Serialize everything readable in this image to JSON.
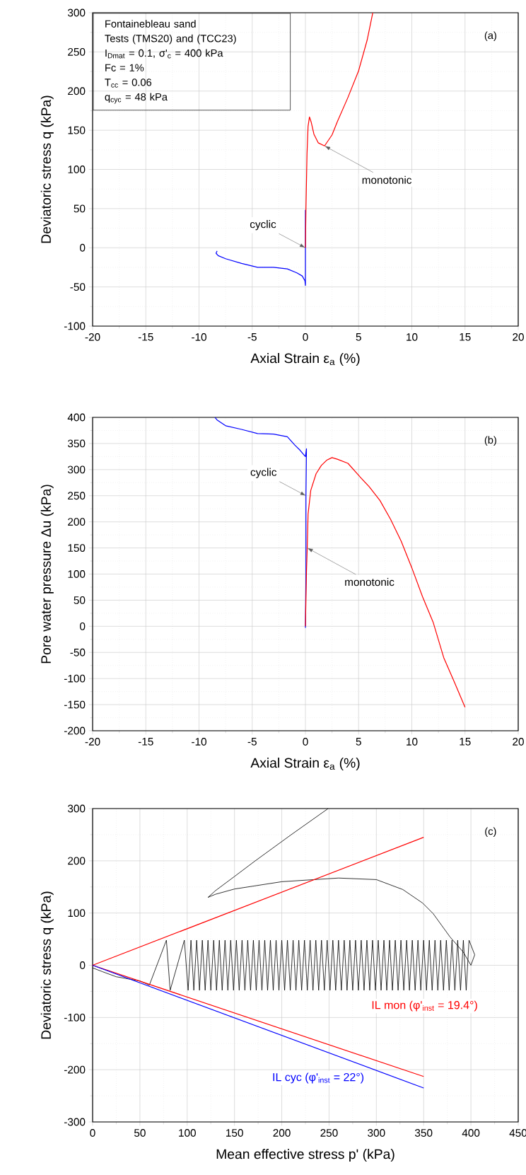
{
  "chart_data": [
    {
      "type": "line",
      "title": "(a)",
      "xlabel": "Axial Strain ε$_{a}$ (%)",
      "ylabel": "Deviatoric stress q (kPa)",
      "xlim": [
        -20,
        20
      ],
      "ylim": [
        -100,
        300
      ],
      "xticks": [
        -20,
        -15,
        -10,
        -5,
        0,
        5,
        10,
        15,
        20
      ],
      "yticks": [
        -100,
        -50,
        0,
        50,
        100,
        150,
        200,
        250,
        300
      ],
      "grid": true,
      "annotations": [
        "Fontainebleau sand",
        "Tests (TMS20) and (TCC23)",
        "I$_{Dmat}$ = 0.1, σ'$_{c}$ = 400 kPa",
        "Fc = 1%",
        "T$_{cc}$ = 0.06",
        "q$_{cyc}$ = 48 kPa",
        {
          "text": "cyclic",
          "x": 0,
          "y": 0
        },
        {
          "text": "monotonic",
          "x": 1.8,
          "y": 130
        }
      ],
      "series": [
        {
          "color": "#0000ff",
          "x": [
            0,
            0,
            0,
            0,
            0,
            -0.05,
            -0.3,
            -0.8,
            -1.7,
            -3,
            -4.5,
            -6,
            -7.5,
            -8.2,
            -8.4,
            -8.3
          ],
          "values": [
            0,
            48,
            -48,
            48,
            -48,
            -42,
            -36,
            -32,
            -27,
            -25,
            -25,
            -20,
            -14,
            -10,
            -7,
            -4
          ]
        },
        {
          "color": "#ff0000",
          "x": [
            0,
            0.05,
            0.15,
            0.25,
            0.38,
            0.55,
            0.8,
            1.2,
            1.8,
            2.5,
            3,
            4,
            5,
            5.8,
            6.33
          ],
          "values": [
            0,
            50,
            120,
            155,
            167,
            160,
            145,
            134,
            130,
            144,
            161,
            192,
            226,
            265,
            300
          ]
        }
      ]
    },
    {
      "type": "line",
      "title": "(b)",
      "xlabel": "Axial Strain ε$_{a}$ (%)",
      "ylabel": "Pore water pressure Δu (kPa)",
      "xlim": [
        -20,
        20
      ],
      "ylim": [
        -200,
        400
      ],
      "xticks": [
        -20,
        -15,
        -10,
        -5,
        0,
        5,
        10,
        15,
        20
      ],
      "yticks": [
        -200,
        -150,
        -100,
        -50,
        0,
        50,
        100,
        150,
        200,
        250,
        300,
        350,
        400
      ],
      "grid": true,
      "annotations": [
        {
          "text": "cyclic",
          "x": 0.05,
          "y": 250
        },
        {
          "text": "monotonic",
          "x": 0.17,
          "y": 150
        }
      ],
      "series": [
        {
          "color": "#0000ff",
          "x": [
            0,
            0.05,
            0.05,
            0.1,
            0,
            -0.05,
            -0.5,
            -1,
            -1.7,
            -3,
            -4.5,
            -6,
            -7.5,
            -8.3,
            -8.5
          ],
          "values": [
            -3,
            100,
            250,
            340,
            325,
            326,
            337,
            347,
            363,
            368,
            369,
            377,
            384,
            395,
            400
          ]
        },
        {
          "color": "#ff0000",
          "x": [
            0,
            0.1,
            0.17,
            0.25,
            0.5,
            1,
            1.5,
            2,
            2.5,
            3,
            4,
            5,
            6,
            7,
            8,
            9,
            10,
            11,
            12,
            13,
            14,
            15
          ],
          "values": [
            0,
            105,
            150,
            215,
            260,
            292,
            308,
            318,
            323,
            320,
            312,
            289,
            267,
            241,
            205,
            163,
            112,
            57,
            8,
            -60,
            -107,
            -155
          ]
        }
      ]
    },
    {
      "type": "line",
      "title": "(c)",
      "xlabel": "Mean effective stress p' (kPa)",
      "ylabel": "Deviatoric stress q (kPa)",
      "xlim": [
        0,
        450
      ],
      "ylim": [
        -300,
        300
      ],
      "xticks": [
        0,
        50,
        100,
        150,
        200,
        250,
        300,
        350,
        400,
        450
      ],
      "yticks": [
        -300,
        -200,
        -100,
        0,
        100,
        200,
        300
      ],
      "grid": true,
      "series": [
        {
          "color": "#000000",
          "x": [
            400,
            404,
            398,
            395,
            392,
            389,
            386,
            383,
            380,
            377,
            374,
            371,
            368,
            365,
            362,
            359,
            356,
            353,
            350,
            347,
            344,
            341,
            338,
            335,
            332,
            329,
            326,
            323,
            320,
            317,
            314,
            311,
            308,
            305,
            302,
            299,
            296,
            293,
            290,
            287,
            284,
            281,
            278,
            275,
            272,
            269,
            266,
            263,
            260,
            257,
            254,
            251,
            248,
            245,
            242,
            239,
            236,
            233,
            230,
            227,
            224,
            221,
            218,
            215,
            212,
            209,
            206,
            203,
            200,
            197,
            194,
            191,
            188,
            185,
            182,
            179,
            176,
            173,
            170,
            167,
            164,
            161,
            158,
            155,
            152,
            149,
            146,
            143,
            140,
            137,
            134,
            131,
            128,
            125,
            122,
            119,
            116,
            113,
            110,
            107,
            104,
            101,
            97,
            82,
            78,
            60,
            50,
            25,
            10,
            0
          ],
          "values": [
            0,
            20,
            48,
            -48,
            48,
            -48,
            48,
            -48,
            48,
            -48,
            48,
            -48,
            48,
            -48,
            48,
            -48,
            48,
            -48,
            48,
            -48,
            48,
            -48,
            48,
            -48,
            48,
            -48,
            48,
            -48,
            48,
            -48,
            48,
            -48,
            48,
            -48,
            48,
            -48,
            48,
            -48,
            48,
            -48,
            48,
            -48,
            48,
            -48,
            48,
            -48,
            48,
            -48,
            48,
            -48,
            48,
            -48,
            48,
            -48,
            48,
            -48,
            48,
            -48,
            48,
            -48,
            48,
            -48,
            48,
            -48,
            48,
            -48,
            48,
            -48,
            48,
            -48,
            48,
            -48,
            48,
            -48,
            48,
            -48,
            48,
            -48,
            48,
            -48,
            48,
            -48,
            48,
            -48,
            48,
            -48,
            48,
            -48,
            48,
            -48,
            48,
            -48,
            48,
            -48,
            48,
            -48,
            48,
            -48,
            48,
            -48,
            48,
            -48,
            48,
            -48,
            48,
            -38,
            -30,
            -22,
            -12,
            -5
          ]
        },
        {
          "color": "#000000",
          "x": [
            400,
            392,
            378,
            360,
            349,
            328,
            300,
            260,
            200,
            150,
            130,
            122,
            130,
            150,
            172,
            210,
            249
          ],
          "values": [
            0,
            25,
            54,
            99,
            119,
            145,
            164,
            167,
            160,
            146,
            136,
            130,
            143,
            170,
            200,
            250,
            300
          ]
        },
        {
          "name": "IL mon (φ'$_{inst}$ = 19.4°)",
          "color": "#ff0000",
          "x": [
            350,
            0,
            350
          ],
          "values": [
            245,
            0,
            -213
          ]
        },
        {
          "name": "IL cyc (φ'$_{inst}$ = 22°)",
          "color": "#0000ff",
          "x": [
            0,
            350
          ],
          "values": [
            0,
            -235
          ]
        }
      ]
    }
  ]
}
